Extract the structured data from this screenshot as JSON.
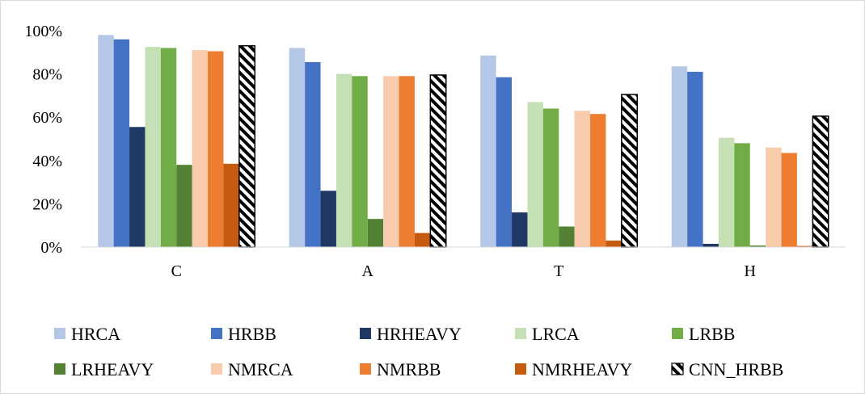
{
  "chart_data": {
    "type": "bar",
    "categories": [
      "C",
      "A",
      "T",
      "H"
    ],
    "ylim": [
      0,
      100
    ],
    "y_ticks": [
      "0%",
      "20%",
      "40%",
      "60%",
      "80%",
      "100%"
    ],
    "y_tick_values": [
      0,
      20,
      40,
      60,
      80,
      100
    ],
    "grid": false,
    "legend_position": "bottom",
    "series": [
      {
        "name": "HRCA",
        "color": "#b4c7e7",
        "values": [
          98,
          92,
          88.5,
          83.5
        ]
      },
      {
        "name": "HRBB",
        "color": "#4472c4",
        "values": [
          96,
          85.5,
          78.5,
          81
        ]
      },
      {
        "name": "HRHEAVY",
        "color": "#203864",
        "values": [
          55.5,
          26,
          16,
          1.5
        ]
      },
      {
        "name": "LRCA",
        "color": "#c5e0b4",
        "values": [
          92.5,
          80,
          67,
          50.5
        ]
      },
      {
        "name": "LRBB",
        "color": "#70ad47",
        "values": [
          92,
          79,
          64,
          48
        ]
      },
      {
        "name": "LRHEAVY",
        "color": "#548235",
        "values": [
          38,
          13,
          9.5,
          0.7
        ]
      },
      {
        "name": "NMRCA",
        "color": "#f8cbad",
        "values": [
          91,
          79,
          63,
          46
        ]
      },
      {
        "name": "NMRBB",
        "color": "#ed7d31",
        "values": [
          90.5,
          79,
          61.5,
          43.5
        ]
      },
      {
        "name": "NMRHEAVY",
        "color": "#c55a11",
        "values": [
          38.5,
          6.5,
          3,
          0.5
        ]
      },
      {
        "name": "CNN_HRBB",
        "color": "#000000",
        "pattern": "diagonal-stripes",
        "values": [
          93,
          79.5,
          70.5,
          60.5
        ]
      }
    ]
  }
}
